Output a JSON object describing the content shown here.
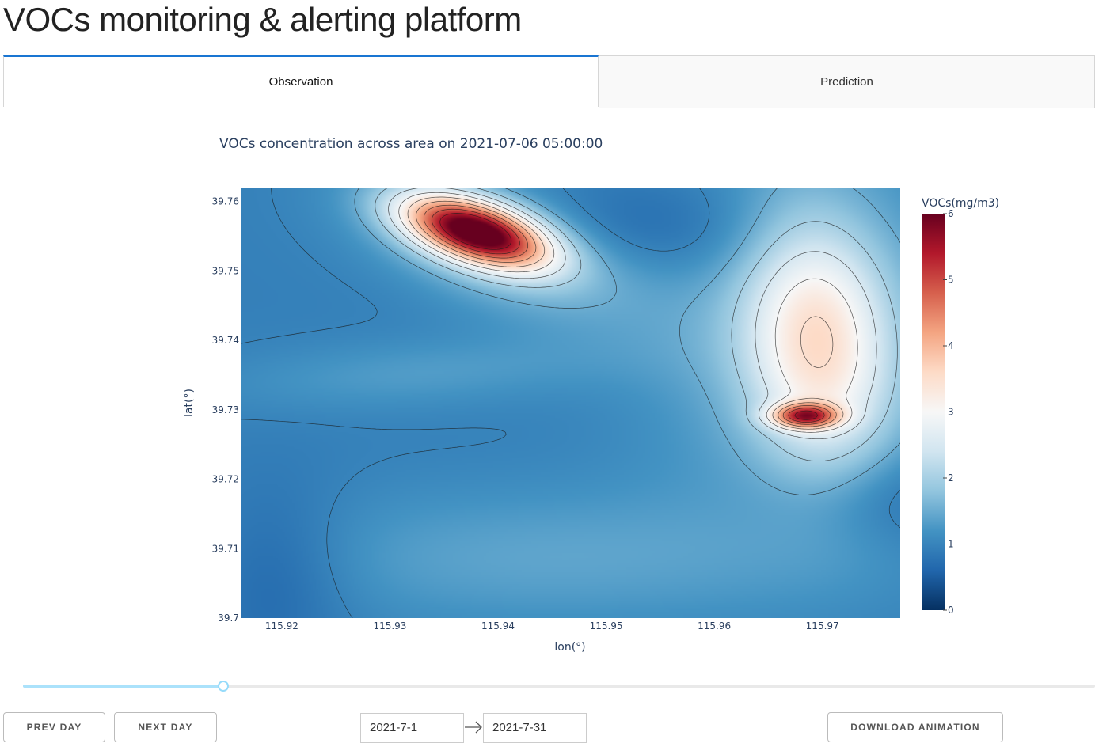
{
  "app": {
    "title": "VOCs monitoring & alerting platform"
  },
  "tabs": [
    {
      "label": "Observation",
      "active": true
    },
    {
      "label": "Prediction",
      "active": false
    }
  ],
  "chart_data": {
    "type": "heatmap",
    "title": "VOCs concentration across area on 2021-07-06 05:00:00",
    "xlabel": "lon(°)",
    "ylabel": "lat(°)",
    "xlim": [
      115.9162,
      115.9772
    ],
    "ylim": [
      39.7,
      39.762
    ],
    "x_ticks": [
      "115.92",
      "115.93",
      "115.94",
      "115.95",
      "115.96",
      "115.97"
    ],
    "y_ticks": [
      "39.7",
      "39.71",
      "39.72",
      "39.73",
      "39.74",
      "39.75",
      "39.76"
    ],
    "colorbar": {
      "title": "VOCs(mg/m3)",
      "range": [
        0,
        6
      ],
      "ticks": [
        "0",
        "1",
        "2",
        "3",
        "4",
        "5",
        "6"
      ],
      "colorscale": "RdBu reversed"
    },
    "contours": true,
    "hotspots": [
      {
        "lon": 115.9395,
        "lat": 39.7558,
        "peak": 5.9
      },
      {
        "lon": 115.97,
        "lat": 39.7275,
        "peak": 4.6
      }
    ]
  },
  "slider": {
    "value_fraction": 0.187
  },
  "controls": {
    "prev_label": "PREV DAY",
    "next_label": "NEXT DAY",
    "start_date": "2021-7-1",
    "end_date": "2021-7-31",
    "download_label": "DOWNLOAD ANIMATION"
  }
}
